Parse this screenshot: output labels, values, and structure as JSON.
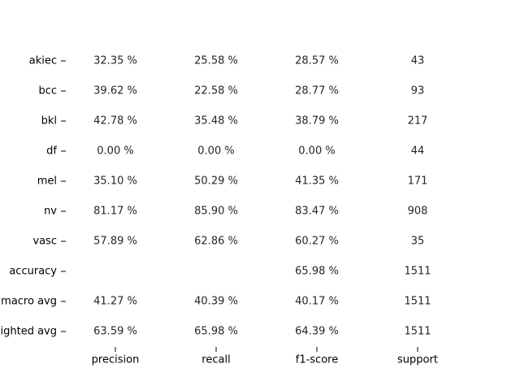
{
  "chart_data": {
    "type": "table",
    "title": "",
    "xlabel": "",
    "ylabel": "",
    "columns": [
      "precision",
      "recall",
      "f1-score",
      "support"
    ],
    "rows": [
      {
        "label": "akiec",
        "cells": [
          "32.35 %",
          "25.58 %",
          "28.57 %",
          "43"
        ]
      },
      {
        "label": "bcc",
        "cells": [
          "39.62 %",
          "22.58 %",
          "28.77 %",
          "93"
        ]
      },
      {
        "label": "bkl",
        "cells": [
          "42.78 %",
          "35.48 %",
          "38.79 %",
          "217"
        ]
      },
      {
        "label": "df",
        "cells": [
          "0.00 %",
          "0.00 %",
          "0.00 %",
          "44"
        ]
      },
      {
        "label": "mel",
        "cells": [
          "35.10 %",
          "50.29 %",
          "41.35 %",
          "171"
        ]
      },
      {
        "label": "nv",
        "cells": [
          "81.17 %",
          "85.90 %",
          "83.47 %",
          "908"
        ]
      },
      {
        "label": "vasc",
        "cells": [
          "57.89 %",
          "62.86 %",
          "60.27 %",
          "35"
        ]
      },
      {
        "label": "accuracy",
        "cells": [
          "",
          "",
          "65.98 %",
          "1511"
        ]
      },
      {
        "label": "macro avg",
        "cells": [
          "41.27 %",
          "40.39 %",
          "40.17 %",
          "1511"
        ]
      },
      {
        "label": "weighted avg",
        "cells": [
          "63.59 %",
          "65.98 %",
          "64.39 %",
          "1511"
        ]
      }
    ],
    "grid": false,
    "legend": "none"
  }
}
